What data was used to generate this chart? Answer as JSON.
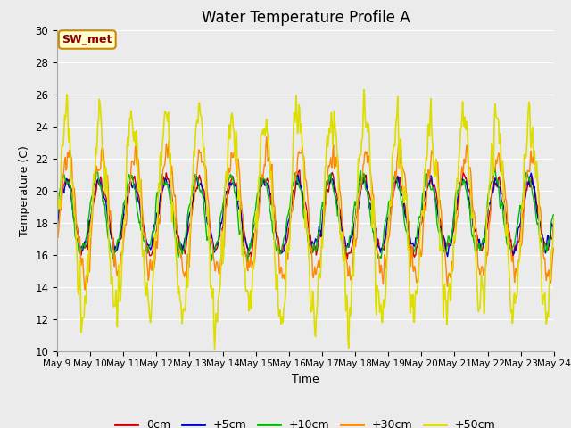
{
  "title": "Water Temperature Profile A",
  "xlabel": "Time",
  "ylabel": "Temperature (C)",
  "ylim": [
    10,
    30
  ],
  "x_tick_labels": [
    "May 9",
    "May 10",
    "May 11",
    "May 12",
    "May 13",
    "May 14",
    "May 15",
    "May 16",
    "May 17",
    "May 18",
    "May 19",
    "May 20",
    "May 21",
    "May 22",
    "May 23",
    "May 24"
  ],
  "series_labels": [
    "0cm",
    "+5cm",
    "+10cm",
    "+30cm",
    "+50cm"
  ],
  "series_colors": [
    "#cc0000",
    "#0000cc",
    "#00bb00",
    "#ff8800",
    "#dddd00"
  ],
  "series_linewidths": [
    1.0,
    1.0,
    1.0,
    1.0,
    1.2
  ],
  "annotation_text": "SW_met",
  "annotation_bg": "#ffffcc",
  "annotation_border": "#cc8800",
  "bg_color": "#ebebeb",
  "grid_color": "#ffffff",
  "title_fontsize": 12,
  "axis_fontsize": 9,
  "legend_fontsize": 9,
  "yticks": [
    10,
    12,
    14,
    16,
    18,
    20,
    22,
    24,
    26,
    28,
    30
  ]
}
